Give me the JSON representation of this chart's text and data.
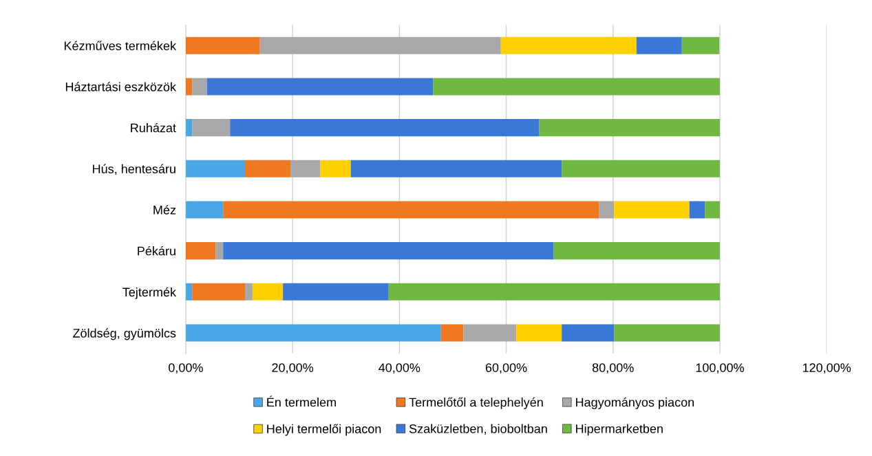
{
  "chart_data": {
    "type": "bar",
    "orientation": "horizontal",
    "stacked": true,
    "categories": [
      "Kézműves termékek",
      "Háztartási eszközök",
      "Ruházat",
      "Hús, hentesáru",
      "Méz",
      "Pékáru",
      "Tejtermék",
      "Zöldség, gyümölcs"
    ],
    "series": [
      {
        "name": "Én termelem",
        "color": "#48a8e8",
        "values": [
          0,
          0,
          1.2,
          11.1,
          7.0,
          0,
          1.2,
          47.8
        ]
      },
      {
        "name": "Termelőtől a telephelyén",
        "color": "#f07820",
        "values": [
          13.9,
          1.2,
          0,
          8.5,
          70.4,
          5.6,
          9.9,
          4.2
        ]
      },
      {
        "name": "Hagyományos piacon",
        "color": "#a8a8a8",
        "values": [
          45.1,
          2.8,
          7.1,
          5.6,
          2.8,
          1.4,
          1.4,
          9.9
        ]
      },
      {
        "name": "Helyi termelői piacon",
        "color": "#ffd000",
        "values": [
          25.4,
          0,
          0,
          5.7,
          14.1,
          0,
          5.7,
          8.5
        ]
      },
      {
        "name": "Szaküzletben, bioboltban",
        "color": "#3a78d8",
        "values": [
          8.5,
          42.3,
          57.9,
          39.5,
          2.9,
          61.9,
          19.8,
          9.8
        ]
      },
      {
        "name": "Hipermarketben",
        "color": "#70b840",
        "values": [
          7.0,
          53.7,
          33.8,
          29.6,
          2.8,
          31.1,
          62.0,
          19.8
        ]
      }
    ],
    "xlim": [
      0,
      120
    ],
    "xticks": [
      {
        "value": 0,
        "label": "0,00%"
      },
      {
        "value": 20,
        "label": "20,00%"
      },
      {
        "value": 40,
        "label": "40,00%"
      },
      {
        "value": 60,
        "label": "60,00%"
      },
      {
        "value": 80,
        "label": "80,00%"
      },
      {
        "value": 100,
        "label": "100,00%"
      },
      {
        "value": 120,
        "label": "120,00%"
      }
    ],
    "grid": "x",
    "legend": "bottom"
  }
}
